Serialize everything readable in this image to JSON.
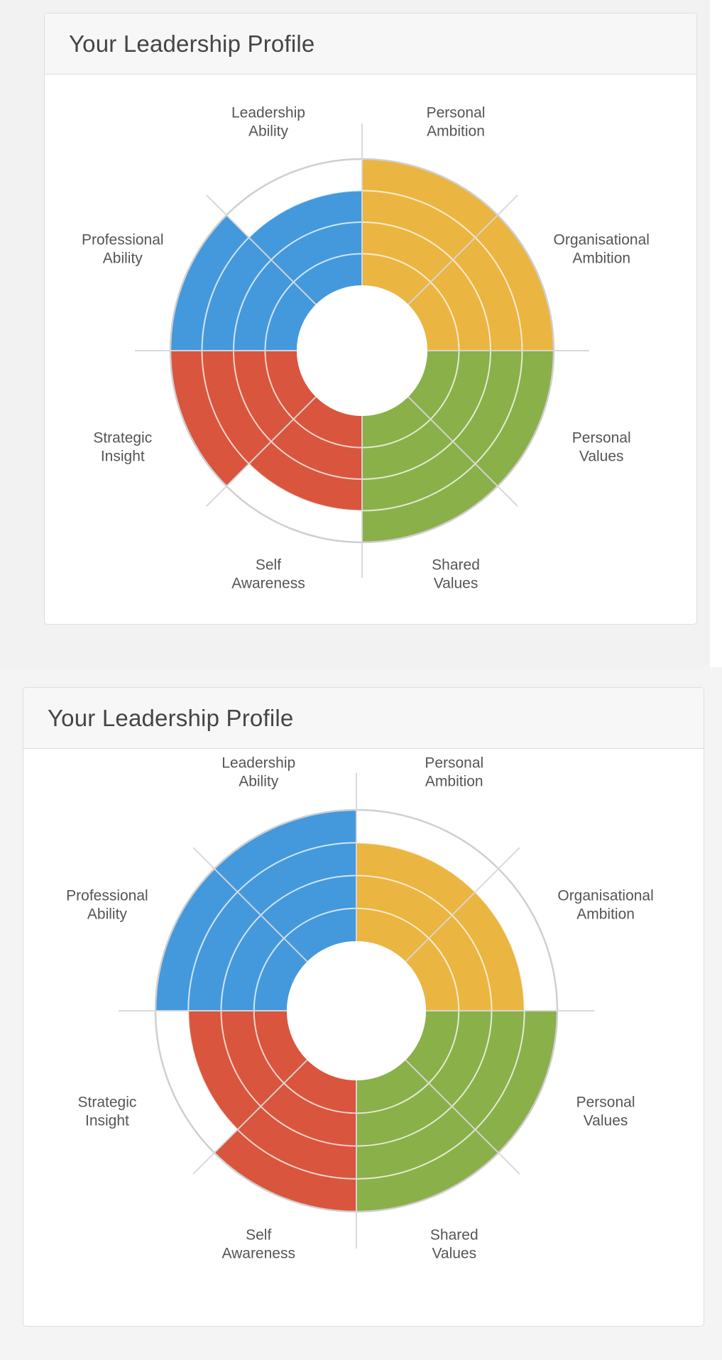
{
  "charts": [
    {
      "title": "Your Leadership Profile",
      "chart_data": {
        "type": "radial-segment",
        "max_level": 4,
        "segments": [
          {
            "label": [
              "Personal",
              "Ambition"
            ],
            "level": 4,
            "color": "#ebb541"
          },
          {
            "label": [
              "Organisational",
              "Ambition"
            ],
            "level": 4,
            "color": "#ebb541"
          },
          {
            "label": [
              "Personal",
              "Values"
            ],
            "level": 4,
            "color": "#8ab04a"
          },
          {
            "label": [
              "Shared",
              "Values"
            ],
            "level": 4,
            "color": "#8ab04a"
          },
          {
            "label": [
              "Self",
              "Awareness"
            ],
            "level": 3,
            "color": "#d9553d"
          },
          {
            "label": [
              "Strategic",
              "Insight"
            ],
            "level": 4,
            "color": "#d9553d"
          },
          {
            "label": [
              "Professional",
              "Ability"
            ],
            "level": 4,
            "color": "#4499dd"
          },
          {
            "label": [
              "Leadership",
              "Ability"
            ],
            "level": 3,
            "color": "#4499dd"
          }
        ]
      }
    },
    {
      "title": "Your Leadership Profile",
      "chart_data": {
        "type": "radial-segment",
        "max_level": 4,
        "segments": [
          {
            "label": [
              "Personal",
              "Ambition"
            ],
            "level": 3,
            "color": "#ebb541"
          },
          {
            "label": [
              "Organisational",
              "Ambition"
            ],
            "level": 3,
            "color": "#ebb541"
          },
          {
            "label": [
              "Personal",
              "Values"
            ],
            "level": 4,
            "color": "#8ab04a"
          },
          {
            "label": [
              "Shared",
              "Values"
            ],
            "level": 4,
            "color": "#8ab04a"
          },
          {
            "label": [
              "Self",
              "Awareness"
            ],
            "level": 4,
            "color": "#d9553d"
          },
          {
            "label": [
              "Strategic",
              "Insight"
            ],
            "level": 3,
            "color": "#d9553d"
          },
          {
            "label": [
              "Professional",
              "Ability"
            ],
            "level": 4,
            "color": "#4499dd"
          },
          {
            "label": [
              "Leadership",
              "Ability"
            ],
            "level": 4,
            "color": "#4499dd"
          }
        ]
      }
    }
  ]
}
